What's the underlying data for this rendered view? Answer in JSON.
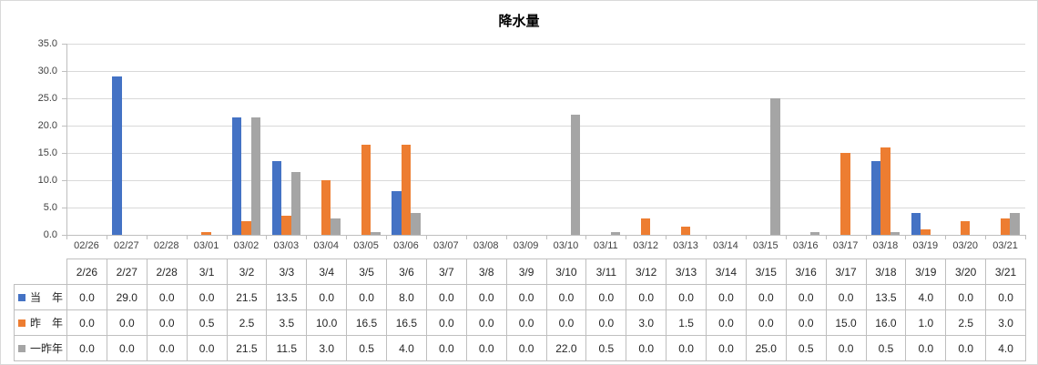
{
  "chart_data": {
    "type": "bar",
    "title": "降水量",
    "categories": [
      "02/26",
      "02/27",
      "02/28",
      "03/01",
      "03/02",
      "03/03",
      "03/04",
      "03/05",
      "03/06",
      "03/07",
      "03/08",
      "03/09",
      "03/10",
      "03/11",
      "03/12",
      "03/13",
      "03/14",
      "03/15",
      "03/16",
      "03/17",
      "03/18",
      "03/19",
      "03/20",
      "03/21"
    ],
    "table_headers": [
      "2/26",
      "2/27",
      "2/28",
      "3/1",
      "3/2",
      "3/3",
      "3/4",
      "3/5",
      "3/6",
      "3/7",
      "3/8",
      "3/9",
      "3/10",
      "3/11",
      "3/12",
      "3/13",
      "3/14",
      "3/15",
      "3/16",
      "3/17",
      "3/18",
      "3/19",
      "3/20",
      "3/21"
    ],
    "series": [
      {
        "key": "this-year",
        "name": "当　年",
        "color": "#4472C4",
        "values": [
          0.0,
          29.0,
          0.0,
          0.0,
          21.5,
          13.5,
          0.0,
          0.0,
          8.0,
          0.0,
          0.0,
          0.0,
          0.0,
          0.0,
          0.0,
          0.0,
          0.0,
          0.0,
          0.0,
          0.0,
          13.5,
          4.0,
          0.0,
          0.0
        ]
      },
      {
        "key": "last-year",
        "name": "昨　年",
        "color": "#ED7D31",
        "values": [
          0.0,
          0.0,
          0.0,
          0.5,
          2.5,
          3.5,
          10.0,
          16.5,
          16.5,
          0.0,
          0.0,
          0.0,
          0.0,
          0.0,
          3.0,
          1.5,
          0.0,
          0.0,
          0.0,
          15.0,
          16.0,
          1.0,
          2.5,
          3.0
        ]
      },
      {
        "key": "two-years-ago",
        "name": "一昨年",
        "color": "#A5A5A5",
        "values": [
          0.0,
          0.0,
          0.0,
          0.0,
          21.5,
          11.5,
          3.0,
          0.5,
          4.0,
          0.0,
          0.0,
          0.0,
          22.0,
          0.5,
          0.0,
          0.0,
          0.0,
          25.0,
          0.5,
          0.0,
          0.5,
          0.0,
          0.0,
          4.0
        ]
      }
    ],
    "ylim": [
      0,
      35
    ],
    "y_tick_step": 5,
    "y_tick_labels": [
      "0.0",
      "5.0",
      "10.0",
      "15.0",
      "20.0",
      "25.0",
      "30.0",
      "35.0"
    ],
    "grid": true,
    "legend_position": "data-table-left",
    "value_decimals": 1,
    "colors": {
      "gridline": "#D9D9D9",
      "axis": "#BFBFBF",
      "table_border": "#BFBFBF",
      "axis_text": "#404040",
      "table_text": "#262626"
    }
  }
}
